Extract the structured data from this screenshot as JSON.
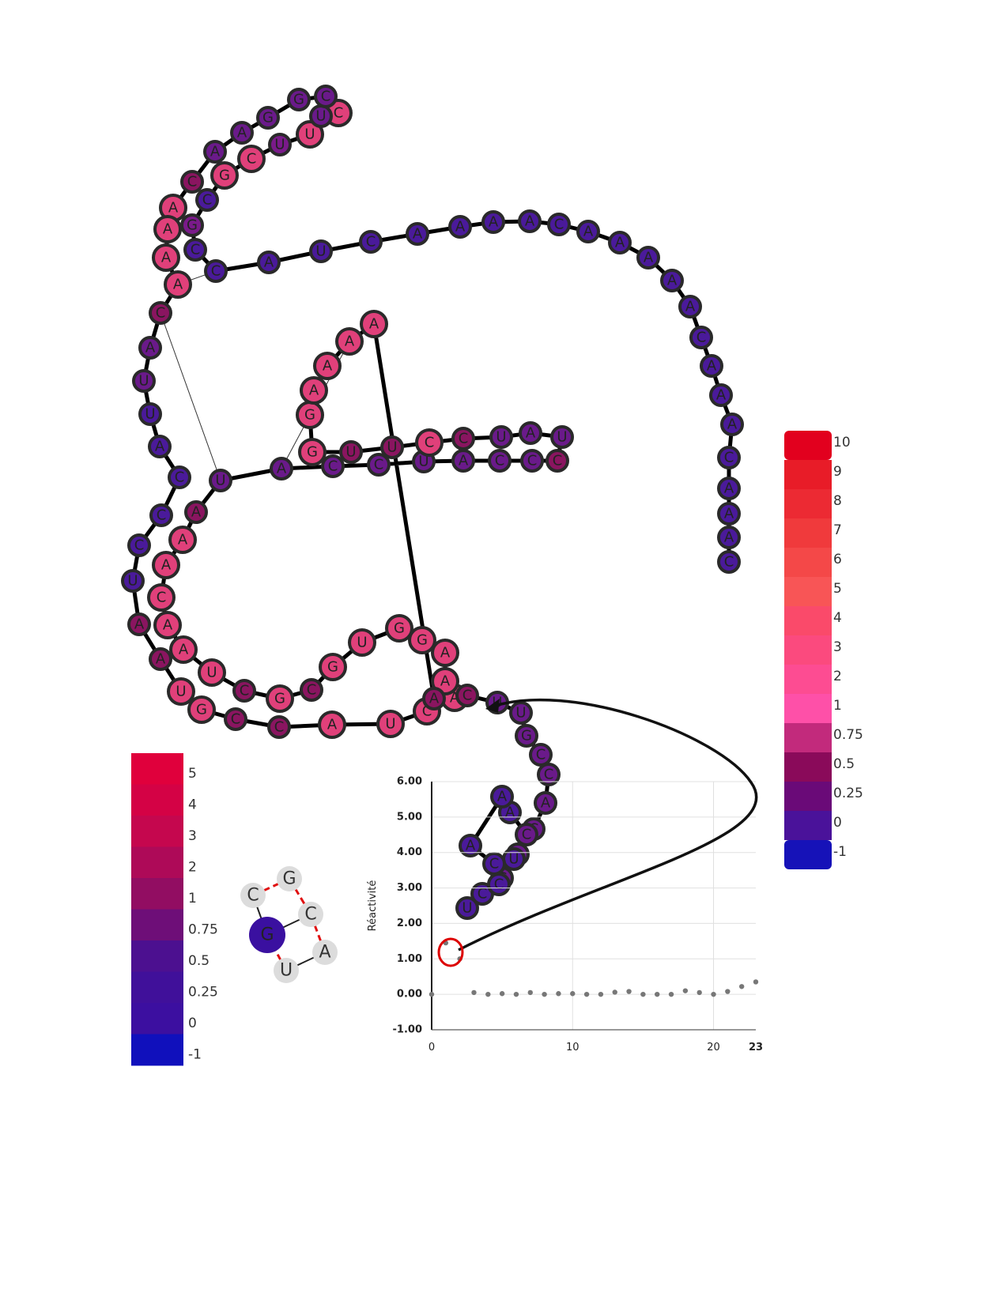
{
  "rna": {
    "nucleotides": [
      {
        "l": "C",
        "c": "#4a1a9a"
      },
      {
        "l": "A",
        "c": "#4a1a9a"
      },
      {
        "l": "A",
        "c": "#4a1a9a"
      },
      {
        "l": "A",
        "c": "#4a1a9a"
      },
      {
        "l": "C",
        "c": "#4a1a9a"
      },
      {
        "l": "A",
        "c": "#4a1a9a"
      },
      {
        "l": "A",
        "c": "#4a1a9a"
      },
      {
        "l": "A",
        "c": "#4a1a9a"
      },
      {
        "l": "C",
        "c": "#4a1a9a"
      },
      {
        "l": "A",
        "c": "#4a1a9a"
      },
      {
        "l": "A",
        "c": "#4a1a9a"
      },
      {
        "l": "A",
        "c": "#4a1a9a"
      },
      {
        "l": "A",
        "c": "#4a1a9a"
      },
      {
        "l": "A",
        "c": "#4a1a9a"
      },
      {
        "l": "C",
        "c": "#4a1a9a"
      },
      {
        "l": "A",
        "c": "#4a1a9a"
      },
      {
        "l": "A",
        "c": "#4a1a9a"
      },
      {
        "l": "A",
        "c": "#4a1a9a"
      },
      {
        "l": "A",
        "c": "#4a1a9a"
      },
      {
        "l": "C",
        "c": "#4a1a9a"
      },
      {
        "l": "U",
        "c": "#4a1a9a"
      },
      {
        "l": "A",
        "c": "#4a1a9a"
      },
      {
        "l": "C",
        "c": "#4a1a9a"
      },
      {
        "l": "C",
        "c": "#4a1a9a"
      },
      {
        "l": "G",
        "c": "#7a1a8a"
      },
      {
        "l": "C",
        "c": "#4a1a9a"
      },
      {
        "l": "G",
        "c": "#e0407a"
      },
      {
        "l": "C",
        "c": "#e0407a"
      },
      {
        "l": "U",
        "c": "#7a1a8a"
      },
      {
        "l": "U",
        "c": "#e0407a"
      },
      {
        "l": "C",
        "c": "#e0407a"
      },
      {
        "l": "U",
        "c": "#6a1a8a"
      },
      {
        "l": "C",
        "c": "#6a1a8a"
      },
      {
        "l": "G",
        "c": "#6a1a8a"
      },
      {
        "l": "G",
        "c": "#6a1a8a"
      },
      {
        "l": "A",
        "c": "#6a1a8a"
      },
      {
        "l": "A",
        "c": "#6a1a8a"
      },
      {
        "l": "C",
        "c": "#8a1560"
      },
      {
        "l": "A",
        "c": "#e0407a"
      },
      {
        "l": "A",
        "c": "#e0407a"
      },
      {
        "l": "A",
        "c": "#e0407a"
      },
      {
        "l": "A",
        "c": "#e0407a"
      },
      {
        "l": "C",
        "c": "#8a1560"
      },
      {
        "l": "A",
        "c": "#6a1a8a"
      },
      {
        "l": "U",
        "c": "#6a1a8a"
      },
      {
        "l": "U",
        "c": "#4a1a9a"
      },
      {
        "l": "A",
        "c": "#4a1a9a"
      },
      {
        "l": "C",
        "c": "#4a1a9a"
      },
      {
        "l": "C",
        "c": "#4a1a9a"
      },
      {
        "l": "C",
        "c": "#4a1a9a"
      },
      {
        "l": "U",
        "c": "#4a1a9a"
      },
      {
        "l": "A",
        "c": "#8a1560"
      },
      {
        "l": "A",
        "c": "#8a1560"
      },
      {
        "l": "U",
        "c": "#e0407a"
      },
      {
        "l": "G",
        "c": "#e0407a"
      },
      {
        "l": "C",
        "c": "#8a1560"
      },
      {
        "l": "C",
        "c": "#8a1560"
      },
      {
        "l": "A",
        "c": "#e0407a"
      },
      {
        "l": "U",
        "c": "#e0407a"
      },
      {
        "l": "C",
        "c": "#e0407a"
      },
      {
        "l": "A",
        "c": "#e0407a"
      },
      {
        "l": "A",
        "c": "#e0407a"
      },
      {
        "l": "A",
        "c": "#e0407a"
      },
      {
        "l": "G",
        "c": "#e0407a"
      },
      {
        "l": "G",
        "c": "#e0407a"
      },
      {
        "l": "U",
        "c": "#e0407a"
      },
      {
        "l": "G",
        "c": "#e0407a"
      },
      {
        "l": "C",
        "c": "#8a1560"
      },
      {
        "l": "G",
        "c": "#e0407a"
      },
      {
        "l": "C",
        "c": "#8a1560"
      },
      {
        "l": "U",
        "c": "#e0407a"
      },
      {
        "l": "A",
        "c": "#e0407a"
      },
      {
        "l": "A",
        "c": "#e0407a"
      },
      {
        "l": "C",
        "c": "#e0407a"
      },
      {
        "l": "A",
        "c": "#e0407a"
      },
      {
        "l": "A",
        "c": "#e0407a"
      },
      {
        "l": "A",
        "c": "#8a1560"
      },
      {
        "l": "U",
        "c": "#6a1a8a"
      },
      {
        "l": "A",
        "c": "#6a1a8a"
      },
      {
        "l": "C",
        "c": "#6a1a8a"
      },
      {
        "l": "C",
        "c": "#6a1a8a"
      },
      {
        "l": "U",
        "c": "#6a1a8a"
      },
      {
        "l": "A",
        "c": "#6a1a8a"
      },
      {
        "l": "C",
        "c": "#6a1a8a"
      },
      {
        "l": "C",
        "c": "#6a1a8a"
      },
      {
        "l": "C",
        "c": "#8a1560"
      },
      {
        "l": "U",
        "c": "#6a1a8a"
      },
      {
        "l": "A",
        "c": "#6a1a8a"
      },
      {
        "l": "U",
        "c": "#6a1a8a"
      },
      {
        "l": "C",
        "c": "#8a1560"
      },
      {
        "l": "C",
        "c": "#e0407a"
      },
      {
        "l": "U",
        "c": "#8a1560"
      },
      {
        "l": "U",
        "c": "#8a1560"
      },
      {
        "l": "G",
        "c": "#e0407a"
      },
      {
        "l": "G",
        "c": "#e0407a"
      },
      {
        "l": "A",
        "c": "#e0407a"
      },
      {
        "l": "A",
        "c": "#e0407a"
      },
      {
        "l": "A",
        "c": "#e0407a"
      },
      {
        "l": "A",
        "c": "#e0407a"
      },
      {
        "l": "A",
        "c": "#8a1560"
      },
      {
        "l": "C",
        "c": "#8a1560"
      },
      {
        "l": "U",
        "c": "#6a1a8a"
      },
      {
        "l": "U",
        "c": "#6a1a8a"
      },
      {
        "l": "G",
        "c": "#6a1a8a"
      },
      {
        "l": "C",
        "c": "#6a1a8a"
      },
      {
        "l": "C",
        "c": "#6a1a8a"
      },
      {
        "l": "A",
        "c": "#6a1a8a"
      },
      {
        "l": "C",
        "c": "#6a1a8a"
      },
      {
        "l": "A",
        "c": "#6a1a8a"
      },
      {
        "l": "C",
        "c": "#6a1a8a"
      },
      {
        "l": "C",
        "c": "#4a1a9a"
      },
      {
        "l": "U",
        "c": "#4a1a9a"
      },
      {
        "l": "C",
        "c": "#4a1a9a"
      },
      {
        "l": "U",
        "c": "#4a1a9a"
      },
      {
        "l": "C",
        "c": "#6a1a8a"
      },
      {
        "l": "A",
        "c": "#4a1a9a"
      },
      {
        "l": "A",
        "c": "#4a1a9a"
      },
      {
        "l": "A",
        "c": "#4a1a9a"
      },
      {
        "l": "C",
        "c": "#4a1a9a"
      },
      {
        "l": "A",
        "c": "#4a1a9a"
      },
      {
        "l": "A",
        "c": "#4a1a9a"
      },
      {
        "l": "A",
        "c": "#4a1a9a"
      },
      {
        "l": "A",
        "c": "#4a1a9a"
      },
      {
        "l": "A",
        "c": "#4a1a9a"
      },
      {
        "l": "C",
        "c": "#4a1a9a"
      },
      {
        "l": "A",
        "c": "#4a1a9a"
      },
      {
        "l": "A",
        "c": "#4a1a9a"
      },
      {
        "l": "A",
        "c": "#4a1a9a"
      },
      {
        "l": "A",
        "c": "#4a1a9a"
      },
      {
        "l": "A",
        "c": "#4a1a9a"
      },
      {
        "l": "A",
        "c": "#4a1a9a"
      },
      {
        "l": "A",
        "c": "#808080"
      },
      {
        "l": "C",
        "c": "#808080"
      },
      {
        "l": "A",
        "c": "#808080"
      },
      {
        "l": "A",
        "c": "#808080"
      },
      {
        "l": "C",
        "c": "#808080"
      }
    ]
  },
  "legend_right": {
    "steps": [
      {
        "label": "10",
        "color": "#e2001e"
      },
      {
        "label": "9",
        "color": "#e81c28"
      },
      {
        "label": "8",
        "color": "#ec2a33"
      },
      {
        "label": "7",
        "color": "#f03a3c"
      },
      {
        "label": "6",
        "color": "#f44848"
      },
      {
        "label": "5",
        "color": "#f85556"
      },
      {
        "label": "4",
        "color": "#fa4a6a"
      },
      {
        "label": "3",
        "color": "#fb4a7e"
      },
      {
        "label": "2",
        "color": "#fd4c92"
      },
      {
        "label": "1",
        "color": "#fe50a8"
      },
      {
        "label": "0.75",
        "color": "#c22a7c"
      },
      {
        "label": "0.5",
        "color": "#8a0a5a"
      },
      {
        "label": "0.25",
        "color": "#6a0a78"
      },
      {
        "label": "0",
        "color": "#4a129a"
      },
      {
        "label": "-1",
        "color": "#1612b8"
      }
    ]
  },
  "legend_left": {
    "steps": [
      {
        "label": "5",
        "color": "#e0003c"
      },
      {
        "label": "4",
        "color": "#d40245"
      },
      {
        "label": "3",
        "color": "#c5074e"
      },
      {
        "label": "2",
        "color": "#ae0a58"
      },
      {
        "label": "1",
        "color": "#920d62"
      },
      {
        "label": "0.75",
        "color": "#6e0e78"
      },
      {
        "label": "0.5",
        "color": "#4c1090"
      },
      {
        "label": "0.25",
        "color": "#40109a"
      },
      {
        "label": "0",
        "color": "#3c0fa0"
      },
      {
        "label": "-1",
        "color": "#1010bc"
      }
    ]
  },
  "mini_structure": {
    "nodes": [
      {
        "l": "G",
        "c": "#3a10a0",
        "big": true
      },
      {
        "l": "C",
        "c": "#dcdcdc"
      },
      {
        "l": "G",
        "c": "#dcdcdc"
      },
      {
        "l": "C",
        "c": "#dcdcdc"
      },
      {
        "l": "A",
        "c": "#dcdcdc"
      },
      {
        "l": "U",
        "c": "#dcdcdc"
      }
    ]
  },
  "chart_data": {
    "type": "scatter",
    "ylabel": "Réactivité",
    "xlabel": "",
    "xlim": [
      0,
      23
    ],
    "ylim": [
      -1,
      6
    ],
    "y_ticks": [
      "6.00",
      "5.00",
      "4.00",
      "3.00",
      "2.00",
      "1.00",
      "0.00",
      "-1.00"
    ],
    "x_ticks": [
      "0",
      "10",
      "20",
      "23"
    ],
    "series": [
      {
        "points": [
          [
            0,
            0.0
          ],
          [
            1,
            1.45
          ],
          [
            2,
            1.0
          ],
          [
            3,
            0.05
          ],
          [
            4,
            0.0
          ],
          [
            5,
            0.02
          ],
          [
            6,
            0.0
          ],
          [
            7,
            0.05
          ],
          [
            8,
            0.0
          ],
          [
            9,
            0.02
          ],
          [
            10,
            0.02
          ],
          [
            11,
            0.0
          ],
          [
            12,
            0.0
          ],
          [
            13,
            0.06
          ],
          [
            14,
            0.08
          ],
          [
            15,
            0.0
          ],
          [
            16,
            0.0
          ],
          [
            17,
            0.0
          ],
          [
            18,
            0.1
          ],
          [
            19,
            0.05
          ],
          [
            20,
            0.0
          ],
          [
            21,
            0.08
          ],
          [
            22,
            0.22
          ],
          [
            23,
            0.35
          ]
        ],
        "highlight_index": 1
      }
    ]
  }
}
